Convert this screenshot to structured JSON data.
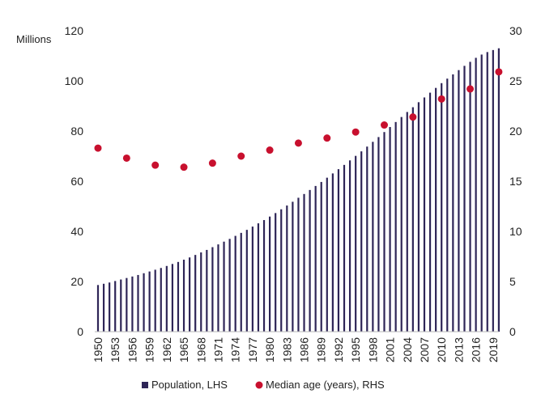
{
  "chart_data": {
    "type": "bar",
    "left_axis_unit": "Millions",
    "left_axis_ticks": [
      "0",
      "20",
      "40",
      "60",
      "80",
      "100",
      "120"
    ],
    "right_axis_ticks": [
      "0",
      "5",
      "10",
      "15",
      "20",
      "25",
      "30"
    ],
    "ylim_left": [
      0,
      120
    ],
    "ylim_right": [
      0,
      30
    ],
    "xlim": [
      1950,
      2020
    ],
    "x_tick_labels": [
      "1950",
      "1953",
      "1956",
      "1959",
      "1962",
      "1965",
      "1968",
      "1971",
      "1974",
      "1977",
      "1980",
      "1983",
      "1986",
      "1989",
      "1992",
      "1995",
      "1998",
      "2001",
      "2004",
      "2007",
      "2010",
      "2013",
      "2016",
      "2019"
    ],
    "series": [
      {
        "name": "Population, LHS",
        "type": "bar",
        "axis": "left",
        "color": "#2e2557",
        "x": [
          1950,
          1951,
          1952,
          1953,
          1954,
          1955,
          1956,
          1957,
          1958,
          1959,
          1960,
          1961,
          1962,
          1963,
          1964,
          1965,
          1966,
          1967,
          1968,
          1969,
          1970,
          1971,
          1972,
          1973,
          1974,
          1975,
          1976,
          1977,
          1978,
          1979,
          1980,
          1981,
          1982,
          1983,
          1984,
          1985,
          1986,
          1987,
          1988,
          1989,
          1990,
          1991,
          1992,
          1993,
          1994,
          1995,
          1996,
          1997,
          1998,
          1999,
          2000,
          2001,
          2002,
          2003,
          2004,
          2005,
          2006,
          2007,
          2008,
          2009,
          2010,
          2011,
          2012,
          2013,
          2014,
          2015,
          2016,
          2017,
          2018,
          2019,
          2020
        ],
        "values": [
          18.6,
          19.1,
          19.6,
          20.2,
          20.8,
          21.4,
          22.0,
          22.6,
          23.3,
          24.0,
          24.7,
          25.4,
          26.2,
          27.0,
          27.8,
          28.7,
          29.6,
          30.6,
          31.6,
          32.6,
          33.7,
          34.8,
          35.9,
          37.0,
          38.2,
          39.4,
          40.6,
          41.9,
          43.2,
          44.5,
          45.9,
          47.3,
          48.8,
          50.3,
          51.8,
          53.4,
          54.9,
          56.5,
          58.1,
          59.7,
          61.4,
          63.1,
          64.8,
          66.5,
          68.3,
          70.1,
          71.9,
          73.8,
          75.7,
          77.6,
          79.6,
          81.6,
          83.6,
          85.6,
          87.6,
          89.5,
          91.5,
          93.4,
          95.3,
          97.2,
          99.1,
          100.9,
          102.6,
          104.3,
          106.0,
          107.6,
          109.2,
          110.5,
          111.5,
          112.3,
          113.0
        ]
      },
      {
        "name": "Median age (years), RHS",
        "type": "scatter",
        "axis": "right",
        "color": "#c8102e",
        "x": [
          1950,
          1955,
          1960,
          1965,
          1970,
          1975,
          1980,
          1985,
          1990,
          1995,
          2000,
          2005,
          2010,
          2015,
          2020
        ],
        "values": [
          18.3,
          17.3,
          16.6,
          16.4,
          16.8,
          17.5,
          18.1,
          18.8,
          19.3,
          19.9,
          20.6,
          21.4,
          23.2,
          24.2,
          25.9
        ]
      }
    ]
  }
}
